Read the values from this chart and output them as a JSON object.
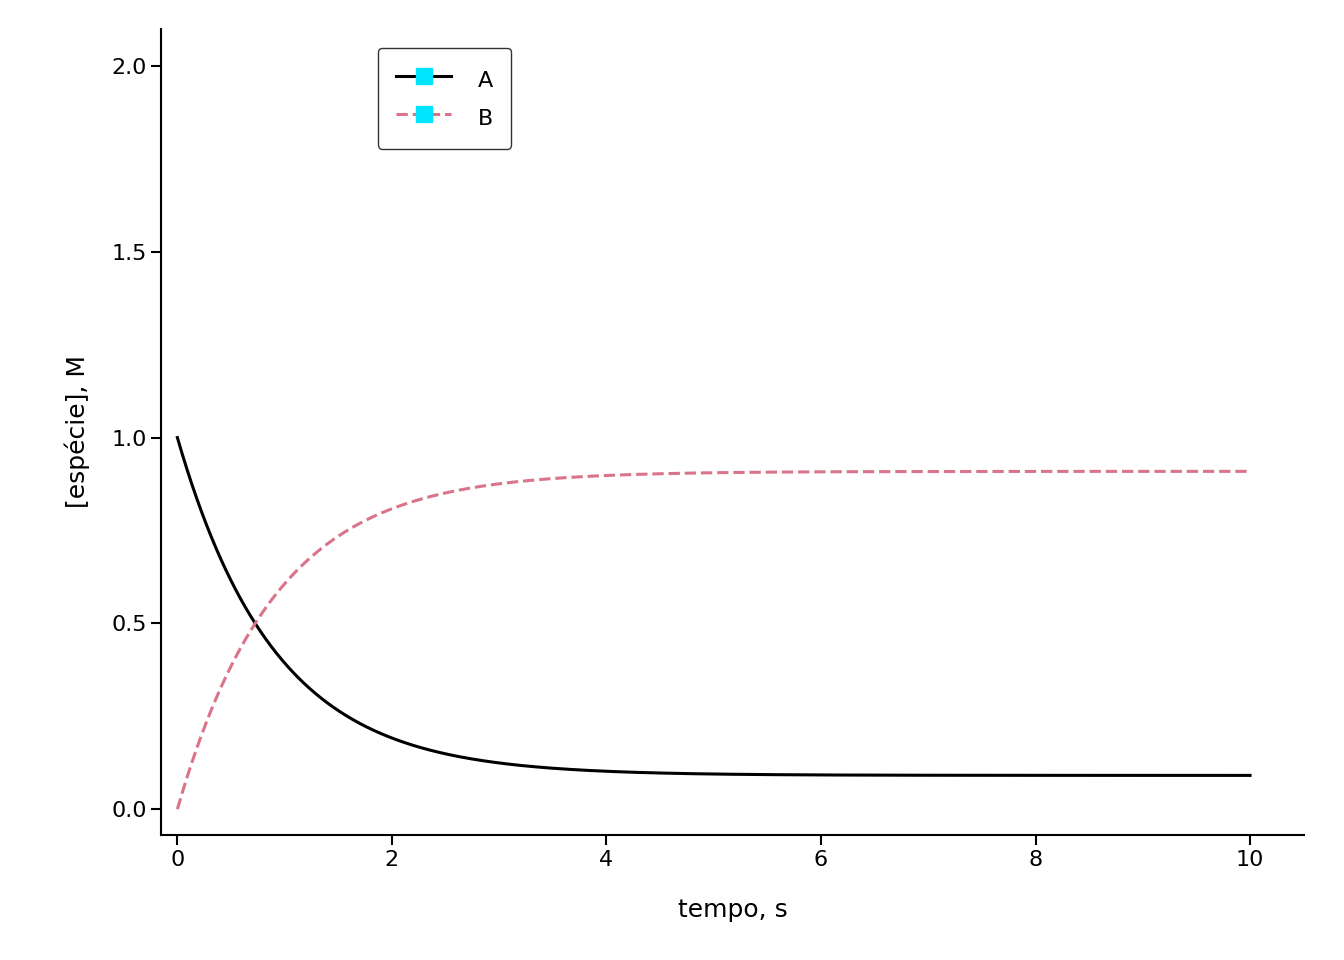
{
  "title": "",
  "xlabel": "tempo, s",
  "ylabel": "[espécie], M",
  "xlim": [
    -0.15,
    10.5
  ],
  "ylim": [
    -0.07,
    2.1
  ],
  "xticks": [
    0,
    2,
    4,
    6,
    8,
    10
  ],
  "yticks": [
    0.0,
    0.5,
    1.0,
    1.5,
    2.0
  ],
  "k1": 1.0,
  "km1": 0.1,
  "A0": 1.0,
  "B0": 0.0,
  "t_end": 10.0,
  "dt": 0.001,
  "line_A_color": "#000000",
  "line_B_color": "#d9748a",
  "line_A_style": "solid",
  "line_B_style": "dashed",
  "line_width": 2.2,
  "marker_color": "#00e5ff",
  "legend_labels": [
    "A",
    "B"
  ],
  "xlabel_fontsize": 18,
  "ylabel_fontsize": 18,
  "tick_fontsize": 16,
  "legend_fontsize": 16,
  "bg_color": "#ffffff"
}
